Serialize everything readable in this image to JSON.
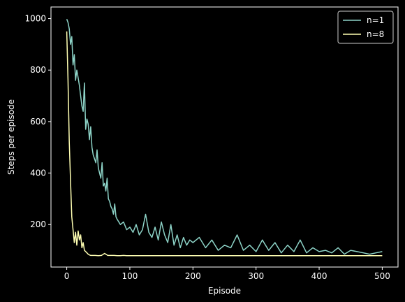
{
  "chart_data": {
    "type": "line",
    "title": "",
    "xlabel": "Episode",
    "ylabel": "Steps per episode",
    "xlim": [
      -25,
      525
    ],
    "ylim": [
      35,
      1045
    ],
    "xticks": [
      0,
      100,
      200,
      300,
      400,
      500
    ],
    "yticks": [
      200,
      400,
      600,
      800,
      1000
    ],
    "grid": false,
    "legend_position": "upper-right",
    "background": "#000000",
    "series": [
      {
        "name": "n=1",
        "color": "#8dd3c7",
        "x": [
          0,
          2,
          4,
          6,
          8,
          10,
          12,
          14,
          16,
          18,
          20,
          22,
          24,
          26,
          28,
          30,
          32,
          34,
          36,
          38,
          40,
          42,
          44,
          46,
          48,
          50,
          52,
          54,
          56,
          58,
          60,
          62,
          64,
          66,
          68,
          70,
          72,
          74,
          76,
          78,
          80,
          85,
          90,
          95,
          100,
          105,
          110,
          115,
          120,
          125,
          130,
          135,
          140,
          145,
          150,
          155,
          160,
          165,
          170,
          175,
          180,
          185,
          190,
          195,
          200,
          210,
          220,
          230,
          240,
          250,
          260,
          270,
          280,
          290,
          300,
          310,
          320,
          330,
          340,
          350,
          360,
          370,
          380,
          390,
          400,
          410,
          420,
          430,
          440,
          450,
          460,
          470,
          480,
          490,
          500
        ],
        "y": [
          998,
          985,
          960,
          900,
          930,
          820,
          860,
          760,
          800,
          770,
          740,
          700,
          660,
          640,
          750,
          570,
          610,
          590,
          530,
          580,
          500,
          470,
          455,
          440,
          490,
          420,
          400,
          380,
          440,
          350,
          360,
          330,
          380,
          300,
          290,
          270,
          260,
          240,
          280,
          230,
          220,
          200,
          210,
          180,
          190,
          170,
          200,
          160,
          180,
          240,
          170,
          150,
          190,
          140,
          210,
          160,
          130,
          200,
          120,
          160,
          110,
          150,
          120,
          140,
          130,
          150,
          110,
          140,
          100,
          120,
          110,
          160,
          100,
          120,
          95,
          140,
          100,
          130,
          90,
          120,
          95,
          140,
          90,
          110,
          95,
          100,
          90,
          110,
          85,
          100,
          95,
          90,
          85,
          90,
          95
        ]
      },
      {
        "name": "n=8",
        "color": "#ffffb3",
        "x": [
          0,
          2,
          4,
          6,
          8,
          10,
          12,
          14,
          16,
          18,
          20,
          22,
          24,
          26,
          28,
          30,
          32,
          34,
          36,
          38,
          40,
          45,
          50,
          55,
          60,
          65,
          70,
          75,
          80,
          85,
          90,
          95,
          100,
          150,
          200,
          250,
          300,
          350,
          400,
          450,
          500
        ],
        "y": [
          950,
          760,
          520,
          370,
          230,
          180,
          130,
          170,
          120,
          175,
          140,
          160,
          110,
          130,
          100,
          95,
          90,
          85,
          82,
          80,
          80,
          80,
          79,
          80,
          88,
          80,
          80,
          80,
          79,
          79,
          80,
          79,
          79,
          79,
          79,
          79,
          79,
          79,
          79,
          79,
          79
        ]
      }
    ]
  }
}
